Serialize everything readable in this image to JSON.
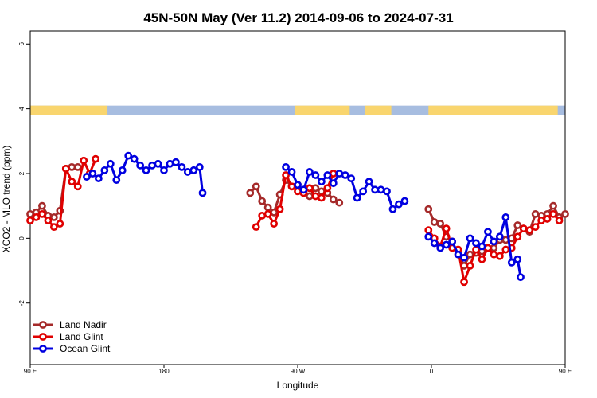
{
  "chart_data": {
    "type": "line",
    "title": "45N-50N May (Ver 11.2)   2014-09-06 to 2024-07-31",
    "xlabel": "Longitude",
    "ylabel": "XCO2 - MLO trend (ppm)",
    "xlim": [
      90,
      450
    ],
    "ylim": [
      -3.9,
      6.4
    ],
    "x_ticks": [
      {
        "value": 90,
        "label": "90 E"
      },
      {
        "value": 180,
        "label": "180"
      },
      {
        "value": 270,
        "label": "90 W"
      },
      {
        "value": 360,
        "label": "0"
      },
      {
        "value": 450,
        "label": "90 E"
      },
      {
        "value": 540,
        "label": "180"
      }
    ],
    "y_ticks": [
      {
        "value": -2,
        "label": "-2"
      },
      {
        "value": 0,
        "label": "0"
      },
      {
        "value": 2,
        "label": "2"
      },
      {
        "value": 4,
        "label": "4"
      },
      {
        "value": 6,
        "label": "6"
      }
    ],
    "land_ocean_strip": {
      "y_center": 3.95,
      "land_color": "#f9d56e",
      "ocean_color": "#a7bde0",
      "land_ranges": [
        [
          90,
          142
        ],
        [
          268,
          305
        ],
        [
          315,
          333
        ],
        [
          358,
          445
        ],
        [
          450,
          502
        ]
      ]
    },
    "legend_position": "bottom-left",
    "series": [
      {
        "name": "Land Nadir",
        "color": "#a52a2a",
        "segments": [
          [
            [
              90,
              0.75
            ],
            [
              94,
              0.8
            ],
            [
              98,
              1.0
            ],
            [
              102,
              0.7
            ],
            [
              106,
              0.65
            ],
            [
              110,
              0.85
            ],
            [
              114,
              2.15
            ],
            [
              118,
              2.2
            ],
            [
              122,
              2.2
            ]
          ],
          [
            [
              238,
              1.4
            ],
            [
              242,
              1.6
            ],
            [
              246,
              1.15
            ],
            [
              250,
              0.95
            ],
            [
              254,
              0.8
            ],
            [
              258,
              1.35
            ],
            [
              262,
              1.8
            ],
            [
              266,
              1.6
            ],
            [
              270,
              1.65
            ],
            [
              274,
              1.4
            ],
            [
              278,
              1.3
            ],
            [
              282,
              1.55
            ],
            [
              286,
              1.45
            ],
            [
              290,
              1.4
            ],
            [
              294,
              1.2
            ],
            [
              298,
              1.1
            ]
          ],
          [
            [
              358,
              0.9
            ],
            [
              362,
              0.5
            ],
            [
              366,
              0.45
            ],
            [
              370,
              0.05
            ],
            [
              374,
              -0.1
            ],
            [
              378,
              -0.5
            ],
            [
              382,
              -0.85
            ],
            [
              386,
              -0.5
            ],
            [
              390,
              -0.45
            ],
            [
              394,
              -0.4
            ],
            [
              398,
              -0.3
            ],
            [
              402,
              -0.3
            ],
            [
              406,
              -0.05
            ],
            [
              410,
              -0.05
            ],
            [
              414,
              0.0
            ],
            [
              418,
              0.4
            ],
            [
              422,
              0.3
            ],
            [
              426,
              0.2
            ],
            [
              430,
              0.75
            ],
            [
              434,
              0.7
            ],
            [
              438,
              0.75
            ],
            [
              442,
              1.0
            ],
            [
              446,
              0.65
            ],
            [
              450,
              0.75
            ]
          ]
        ]
      },
      {
        "name": "Land Glint",
        "color": "#e00000",
        "segments": [
          [
            [
              90,
              0.55
            ],
            [
              94,
              0.65
            ],
            [
              98,
              0.75
            ],
            [
              102,
              0.55
            ],
            [
              106,
              0.35
            ],
            [
              110,
              0.45
            ],
            [
              114,
              2.15
            ],
            [
              118,
              1.75
            ],
            [
              122,
              1.6
            ],
            [
              126,
              2.4
            ],
            [
              130,
              2.0
            ],
            [
              134,
              2.45
            ]
          ],
          [
            [
              242,
              0.35
            ],
            [
              246,
              0.7
            ],
            [
              250,
              0.75
            ],
            [
              254,
              0.45
            ],
            [
              258,
              0.9
            ],
            [
              262,
              1.95
            ],
            [
              266,
              1.6
            ],
            [
              270,
              1.45
            ],
            [
              274,
              1.4
            ],
            [
              278,
              1.55
            ],
            [
              282,
              1.3
            ],
            [
              286,
              1.25
            ],
            [
              290,
              1.55
            ],
            [
              294,
              2.0
            ]
          ],
          [
            [
              358,
              0.25
            ],
            [
              362,
              0.0
            ],
            [
              366,
              -0.25
            ],
            [
              370,
              0.3
            ],
            [
              374,
              -0.3
            ],
            [
              378,
              -0.35
            ],
            [
              382,
              -1.35
            ],
            [
              386,
              -0.85
            ],
            [
              390,
              -0.35
            ],
            [
              394,
              -0.65
            ],
            [
              398,
              -0.3
            ],
            [
              402,
              -0.5
            ],
            [
              406,
              -0.55
            ],
            [
              410,
              -0.35
            ],
            [
              414,
              -0.3
            ],
            [
              418,
              0.05
            ],
            [
              422,
              0.3
            ],
            [
              426,
              0.25
            ],
            [
              430,
              0.35
            ],
            [
              434,
              0.55
            ],
            [
              438,
              0.6
            ],
            [
              442,
              0.75
            ],
            [
              446,
              0.55
            ]
          ]
        ]
      },
      {
        "name": "Ocean Glint",
        "color": "#0000e0",
        "segments": [
          [
            [
              128,
              1.9
            ],
            [
              132,
              2.0
            ],
            [
              136,
              1.85
            ],
            [
              140,
              2.1
            ],
            [
              144,
              2.3
            ],
            [
              148,
              1.8
            ],
            [
              152,
              2.1
            ],
            [
              156,
              2.55
            ],
            [
              160,
              2.45
            ],
            [
              164,
              2.25
            ],
            [
              168,
              2.1
            ],
            [
              172,
              2.25
            ],
            [
              176,
              2.3
            ],
            [
              180,
              2.1
            ],
            [
              184,
              2.3
            ],
            [
              188,
              2.35
            ],
            [
              192,
              2.2
            ],
            [
              196,
              2.05
            ],
            [
              200,
              2.1
            ]
          ],
          [
            [
              200,
              2.1
            ],
            [
              204,
              2.2
            ],
            [
              206,
              1.4
            ]
          ],
          [
            [
              262,
              2.2
            ],
            [
              266,
              2.05
            ],
            [
              270,
              1.65
            ],
            [
              274,
              1.5
            ],
            [
              278,
              2.05
            ],
            [
              282,
              1.95
            ],
            [
              286,
              1.75
            ],
            [
              290,
              1.95
            ],
            [
              294,
              1.7
            ],
            [
              298,
              2.0
            ],
            [
              302,
              1.95
            ],
            [
              306,
              1.85
            ],
            [
              310,
              1.25
            ],
            [
              314,
              1.45
            ],
            [
              318,
              1.75
            ],
            [
              322,
              1.5
            ],
            [
              326,
              1.5
            ],
            [
              330,
              1.45
            ],
            [
              334,
              0.9
            ],
            [
              338,
              1.05
            ],
            [
              342,
              1.15
            ]
          ],
          [
            [
              358,
              0.05
            ],
            [
              362,
              -0.15
            ],
            [
              366,
              -0.3
            ],
            [
              370,
              -0.2
            ],
            [
              374,
              -0.1
            ],
            [
              378,
              -0.5
            ],
            [
              382,
              -0.6
            ],
            [
              386,
              0.0
            ],
            [
              390,
              -0.15
            ],
            [
              394,
              -0.25
            ],
            [
              398,
              0.2
            ],
            [
              402,
              -0.1
            ],
            [
              406,
              0.05
            ],
            [
              410,
              0.65
            ],
            [
              414,
              -0.75
            ],
            [
              418,
              -0.65
            ],
            [
              420,
              -1.2
            ]
          ]
        ]
      }
    ]
  }
}
